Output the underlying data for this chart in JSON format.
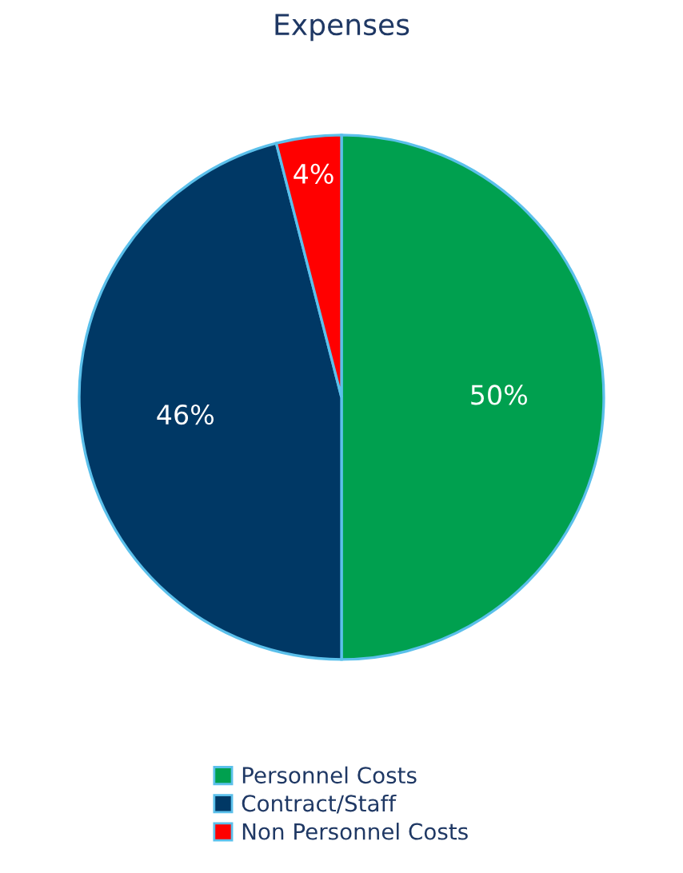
{
  "chart_data": {
    "type": "pie",
    "title": "Expenses",
    "categories": [
      "Personnel Costs",
      "Contract/Staff",
      "Non Personnel Costs"
    ],
    "values": [
      50,
      46,
      4
    ],
    "colors": [
      "#00a04f",
      "#003865",
      "#ff0000"
    ],
    "value_labels": [
      "50%",
      "46%",
      "4%"
    ],
    "legend": "bottom"
  }
}
